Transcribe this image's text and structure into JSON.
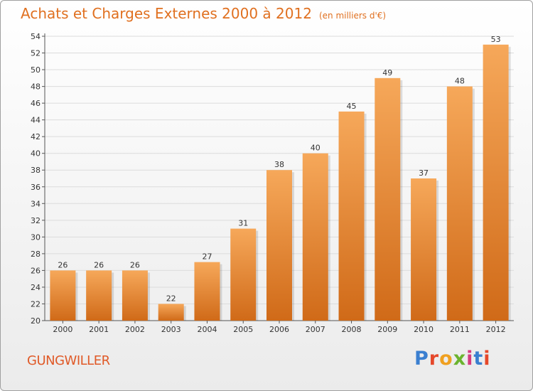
{
  "title": "Achats et Charges Externes 2000 à 2012",
  "unit": "(en milliers d'€)",
  "commune": "GUNGWILLER",
  "logo": [
    "P",
    "r",
    "o",
    "x",
    "i",
    "t",
    "i"
  ],
  "colors": {
    "title": "#e07020",
    "commune": "#e05a28",
    "bar_top": "#f6a85a",
    "bar_bottom": "#d06a18",
    "logo": [
      "#3a7fd0",
      "#e5482b",
      "#f0a020",
      "#6bb32e",
      "#d63a7f",
      "#3a7fd0",
      "#e5482b"
    ]
  },
  "chart_data": {
    "type": "bar",
    "categories": [
      "2000",
      "2001",
      "2002",
      "2003",
      "2004",
      "2005",
      "2006",
      "2007",
      "2008",
      "2009",
      "2010",
      "2011",
      "2012"
    ],
    "values": [
      26,
      26,
      26,
      22,
      27,
      31,
      38,
      40,
      45,
      49,
      37,
      48,
      53
    ],
    "ylim": [
      20,
      54
    ],
    "yticks": [
      20,
      22,
      24,
      26,
      28,
      30,
      32,
      34,
      36,
      38,
      40,
      42,
      44,
      46,
      48,
      50,
      52,
      54
    ],
    "grid": true,
    "legend": "none"
  }
}
